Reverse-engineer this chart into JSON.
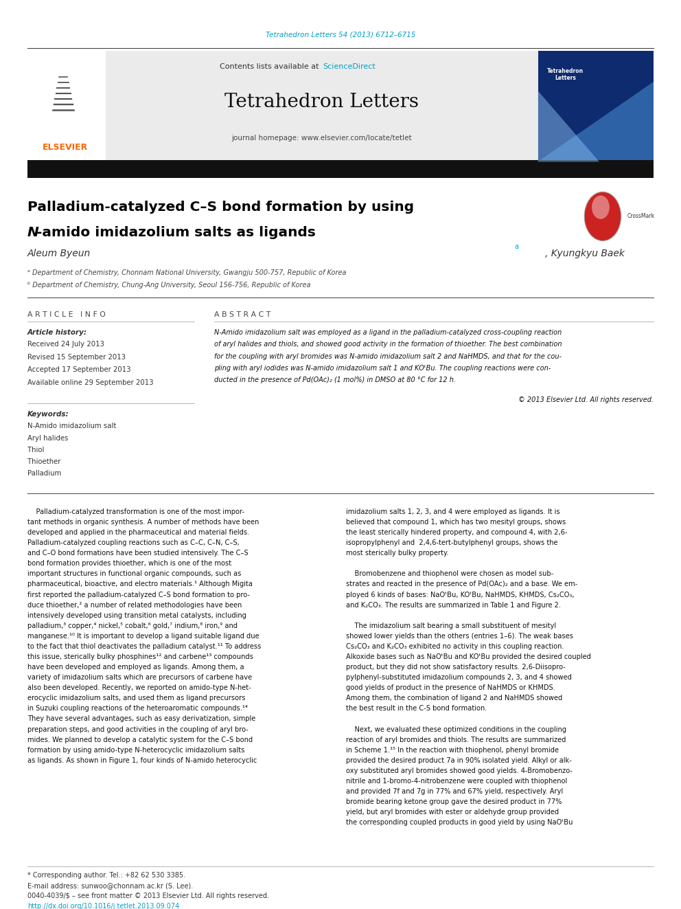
{
  "page_width": 9.92,
  "page_height": 13.23,
  "bg_color": "#ffffff",
  "top_link_text": "Tetrahedron Letters 54 (2013) 6712–6715",
  "top_link_color": "#00a0c6",
  "journal_name": "Tetrahedron Letters",
  "contents_text": "Contents lists available at ",
  "sciencedirect_text": "ScienceDirect",
  "journal_homepage": "journal homepage: www.elsevier.com/locate/tetlet",
  "header_bg": "#e8e8e8",
  "black_bar_color": "#1a1a1a",
  "paper_title_line1": "Palladium-catalyzed C–S bond formation by using ",
  "paper_title_italic_n": "N",
  "paper_title_line2_suffix": "-amido imidazolium salts as ligands",
  "paper_title_color": "#000000",
  "affil1": "ᵃ Department of Chemistry, Chonnam National University, Gwangju 500-757, Republic of Korea",
  "affil2": "ᵇ Department of Chemistry, Chung-Ang University, Seoul 156-756, Republic of Korea",
  "article_info_header": "A R T I C L E   I N F O",
  "abstract_header": "A B S T R A C T",
  "article_history_label": "Article history:",
  "received": "Received 24 July 2013",
  "revised": "Revised 15 September 2013",
  "accepted": "Accepted 17 September 2013",
  "available": "Available online 29 September 2013",
  "keywords_label": "Keywords:",
  "keywords": [
    "N-Amido imidazolium salt",
    "Aryl halides",
    "Thiol",
    "Thioether",
    "Palladium"
  ],
  "copyright_text": "© 2013 Elsevier Ltd. All rights reserved.",
  "footer_text1": "* Corresponding author. Tel.: +82 62 530 3385.",
  "footer_text2": "E-mail address: sunwoo@chonnam.ac.kr (S. Lee).",
  "footer_text3": "0040-4039/$ – see front matter © 2013 Elsevier Ltd. All rights reserved.",
  "footer_link": "http://dx.doi.org/10.1016/j.tetlet.2013.09.074",
  "elsevier_color": "#ff6600",
  "top_link_cyan": "#00a0c6",
  "abstract_lines": [
    "N-Amido imidazolium salt was employed as a ligand in the palladium-catalyzed cross-coupling reaction",
    "of aryl halides and thiols, and showed good activity in the formation of thioether. The best combination",
    "for the coupling with aryl bromides was N-amido imidazolium salt 2 and NaHMDS, and that for the cou-",
    "pling with aryl iodides was N-amido imidazolium salt 1 and KOᵗBu. The coupling reactions were con-",
    "ducted in the presence of Pd(OAc)₂ (1 mol%) in DMSO at 80 °C for 12 h."
  ],
  "col1_lines": [
    "    Palladium-catalyzed transformation is one of the most impor-",
    "tant methods in organic synthesis. A number of methods have been",
    "developed and applied in the pharmaceutical and material fields.",
    "Palladium-catalyzed coupling reactions such as C–C, C–N, C–S,",
    "and C–O bond formations have been studied intensively. The C–S",
    "bond formation provides thioether, which is one of the most",
    "important structures in functional organic compounds, such as",
    "pharmaceutical, bioactive, and electro materials.¹ Although Migita",
    "first reported the palladium-catalyzed C–S bond formation to pro-",
    "duce thioether,² a number of related methodologies have been",
    "intensively developed using transition metal catalysts, including",
    "palladium,³ copper,⁴ nickel,⁵ cobalt,⁶ gold,⁷ indium,⁸ iron,⁹ and",
    "manganese.¹⁰ It is important to develop a ligand suitable ligand due",
    "to the fact that thiol deactivates the palladium catalyst.¹¹ To address",
    "this issue, sterically bulky phosphines¹² and carbene¹³ compounds",
    "have been developed and employed as ligands. Among them, a",
    "variety of imidazolium salts which are precursors of carbene have",
    "also been developed. Recently, we reported on amido-type N-het-",
    "erocyclic imidazolium salts, and used them as ligand precursors",
    "in Suzuki coupling reactions of the heteroaromatic compounds.¹⁴",
    "They have several advantages, such as easy derivatization, simple",
    "preparation steps, and good activities in the coupling of aryl bro-",
    "mides. We planned to develop a catalytic system for the C–S bond",
    "formation by using amido-type N-heterocyclic imidazolium salts",
    "as ligands. As shown in Figure 1, four kinds of N-amido heterocyclic"
  ],
  "col2_lines": [
    "imidazolium salts 1, 2, 3, and 4 were employed as ligands. It is",
    "believed that compound 1, which has two mesityl groups, shows",
    "the least sterically hindered property, and compound 4, with 2,6-",
    "isopropylphenyl and  2,4,6-tert-butylphenyl groups, shows the",
    "most sterically bulky property.",
    "",
    "    Bromobenzene and thiophenol were chosen as model sub-",
    "strates and reacted in the presence of Pd(OAc)₂ and a base. We em-",
    "ployed 6 kinds of bases: NaOᵗBu, KOᵗBu, NaHMDS, KHMDS, Cs₂CO₃,",
    "and K₂CO₃. The results are summarized in Table 1 and Figure 2.",
    "",
    "    The imidazolium salt bearing a small substituent of mesityl",
    "showed lower yields than the others (entries 1–6). The weak bases",
    "Cs₂CO₃ and K₂CO₃ exhibited no activity in this coupling reaction.",
    "Alkoxide bases such as NaOᵗBu and KOᵗBu provided the desired coupled",
    "product, but they did not show satisfactory results. 2,6-Diisopro-",
    "pylphenyl-substituted imidazolium compounds 2, 3, and 4 showed",
    "good yields of product in the presence of NaHMDS or KHMDS.",
    "Among them, the combination of ligand 2 and NaHMDS showed",
    "the best result in the C-S bond formation.",
    "",
    "    Next, we evaluated these optimized conditions in the coupling",
    "reaction of aryl bromides and thiols. The results are summarized",
    "in Scheme 1.¹⁵ In the reaction with thiophenol, phenyl bromide",
    "provided the desired product 7a in 90% isolated yield. Alkyl or alk-",
    "oxy substituted aryl bromides showed good yields. 4-Bromobenzo-",
    "nitrile and 1-bromo-4-nitrobenzene were coupled with thiophenol",
    "and provided 7f and 7g in 77% and 67% yield, respectively. Aryl",
    "bromide bearing ketone group gave the desired product in 77%",
    "yield, but aryl bromides with ester or aldehyde group provided",
    "the corresponding coupled products in good yield by using NaOᵗBu"
  ]
}
